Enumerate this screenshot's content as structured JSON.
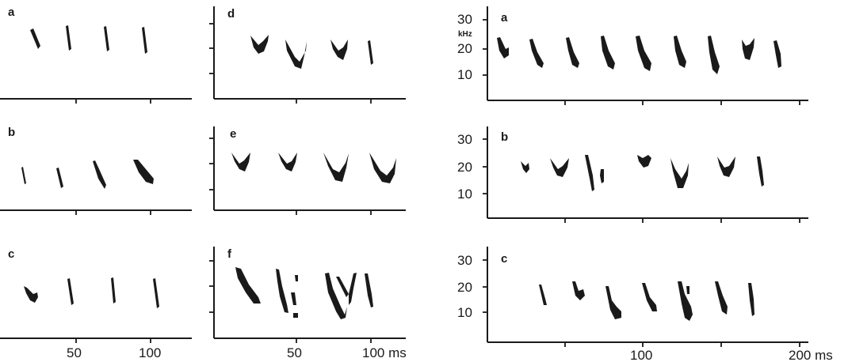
{
  "figure": {
    "columns": [
      {
        "id": "left",
        "panels": [
          {
            "label": "a"
          },
          {
            "label": "b"
          },
          {
            "label": "c"
          }
        ],
        "x_tick_labels": [
          "50",
          "100"
        ],
        "x_unit": ""
      },
      {
        "id": "middle",
        "panels": [
          {
            "label": "d"
          },
          {
            "label": "e"
          },
          {
            "label": "f"
          }
        ],
        "x_tick_labels": [
          "50",
          "100 ms"
        ],
        "x_unit": ""
      },
      {
        "id": "right",
        "panels": [
          {
            "label": "a",
            "y_tick_labels": [
              "30",
              "20",
              "10"
            ],
            "y_unit": "kHz"
          },
          {
            "label": "b",
            "y_tick_labels": [
              "30",
              "20",
              "10"
            ]
          },
          {
            "label": "c",
            "y_tick_labels": [
              "30",
              "20",
              "10"
            ]
          }
        ],
        "x_tick_labels": [
          "100",
          "200 ms"
        ],
        "x_unit": ""
      }
    ]
  }
}
